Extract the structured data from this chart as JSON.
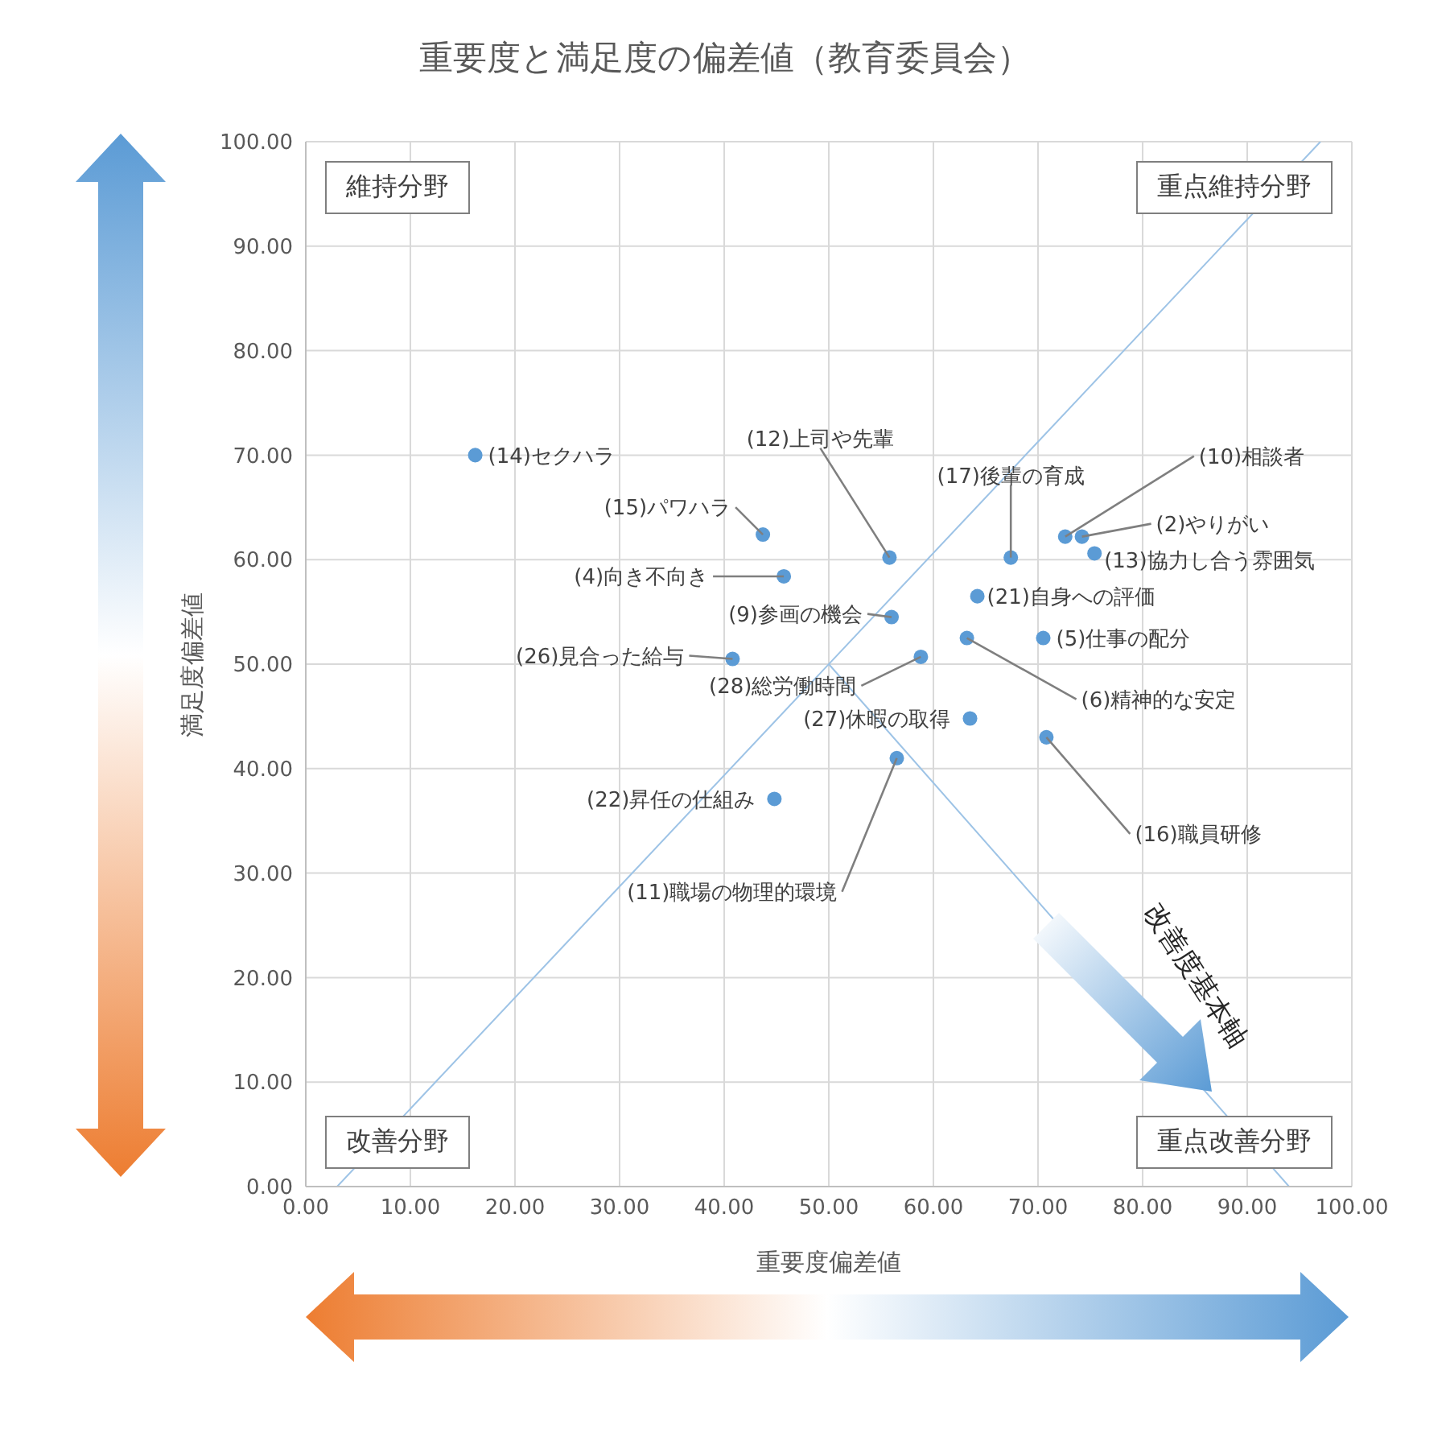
{
  "chart_data": {
    "type": "scatter",
    "title": "重要度と満足度の偏差値（教育委員会）",
    "xlabel": "重要度偏差値",
    "ylabel": "満足度偏差値",
    "xlim": [
      0,
      100
    ],
    "ylim": [
      0,
      100
    ],
    "xticks": [
      {
        "value": 0,
        "label": "0.00"
      },
      {
        "value": 10,
        "label": "10.00"
      },
      {
        "value": 20,
        "label": "20.00"
      },
      {
        "value": 30,
        "label": "30.00"
      },
      {
        "value": 40,
        "label": "40.00"
      },
      {
        "value": 50,
        "label": "50.00"
      },
      {
        "value": 60,
        "label": "60.00"
      },
      {
        "value": 70,
        "label": "70.00"
      },
      {
        "value": 80,
        "label": "80.00"
      },
      {
        "value": 90,
        "label": "90.00"
      },
      {
        "value": 100,
        "label": "100.00"
      }
    ],
    "yticks": [
      {
        "value": 0,
        "label": "0.00"
      },
      {
        "value": 10,
        "label": "10.00"
      },
      {
        "value": 20,
        "label": "20.00"
      },
      {
        "value": 30,
        "label": "30.00"
      },
      {
        "value": 40,
        "label": "40.00"
      },
      {
        "value": 50,
        "label": "50.00"
      },
      {
        "value": 60,
        "label": "60.00"
      },
      {
        "value": 70,
        "label": "70.00"
      },
      {
        "value": 80,
        "label": "80.00"
      },
      {
        "value": 90,
        "label": "90.00"
      },
      {
        "value": 100,
        "label": "100.00"
      }
    ],
    "grid": true,
    "legend": false,
    "series": [
      {
        "type": "scatter",
        "color": "#5b9bd5",
        "marker": "circle",
        "x": [
          16.2,
          43.7,
          45.7,
          40.8,
          44.8,
          55.8,
          56.0,
          58.8,
          63.5,
          56.5,
          67.4,
          72.6,
          74.2,
          75.4,
          64.2,
          70.5,
          63.2,
          70.8
        ],
        "values": [
          70.0,
          62.4,
          58.4,
          50.5,
          37.1,
          60.2,
          54.5,
          50.7,
          44.8,
          41.0,
          60.2,
          62.2,
          62.2,
          60.6,
          56.5,
          52.5,
          52.5,
          43.0
        ]
      },
      {
        "type": "line",
        "color": "#9dc3e6",
        "x": [
          3,
          97
        ],
        "values": [
          0,
          100
        ]
      },
      {
        "type": "line",
        "color": "#9dc3e6",
        "x": [
          50,
          94
        ],
        "values": [
          50,
          0
        ]
      }
    ],
    "annotations": [
      "維持分野",
      "重点維持分野",
      "改善分野",
      "重点改善分野",
      "改善度基本軸",
      {
        "text": "(14)セクハラ",
        "x": 16.2,
        "y": 70.0
      },
      {
        "text": "(15)パワハラ",
        "x": 43.7,
        "y": 62.4
      },
      {
        "text": "(4)向き不向き",
        "x": 45.7,
        "y": 58.4
      },
      {
        "text": "(26)見合った給与",
        "x": 40.8,
        "y": 50.5
      },
      {
        "text": "(22)昇任の仕組み",
        "x": 44.8,
        "y": 37.1
      },
      {
        "text": "(12)上司や先輩",
        "x": 55.8,
        "y": 60.2
      },
      {
        "text": "(9)参画の機会",
        "x": 56.0,
        "y": 54.5
      },
      {
        "text": "(28)総労働時間",
        "x": 58.8,
        "y": 50.7
      },
      {
        "text": "(27)休暇の取得",
        "x": 63.5,
        "y": 44.8
      },
      {
        "text": "(11)職場の物理的環境",
        "x": 56.5,
        "y": 41.0
      },
      {
        "text": "(17)後輩の育成",
        "x": 67.4,
        "y": 60.2
      },
      {
        "text": "(10)相談者",
        "x": 72.6,
        "y": 62.2
      },
      {
        "text": "(2)やりがい",
        "x": 74.2,
        "y": 62.2
      },
      {
        "text": "(13)協力し合う雰囲気",
        "x": 75.4,
        "y": 60.6
      },
      {
        "text": "(21)自身への評価",
        "x": 64.2,
        "y": 56.5
      },
      {
        "text": "(5)仕事の配分",
        "x": 70.5,
        "y": 52.5
      },
      {
        "text": "(6)精神的な安定",
        "x": 63.2,
        "y": 52.5
      },
      {
        "text": "(16)職員研修",
        "x": 70.8,
        "y": 43.0
      }
    ]
  }
}
